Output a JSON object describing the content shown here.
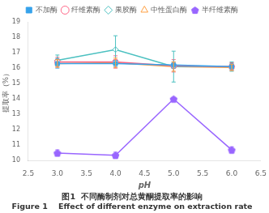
{
  "chart_data": {
    "type": "line",
    "title": "图1  不同酶制剂对总黄酮提取率的影响",
    "subtitle": "Figure 1    Effect of different enzyme on extraction rate",
    "xlabel": "pH",
    "ylabel": "提取率（%）",
    "x": [
      3.0,
      4.0,
      5.0,
      6.0
    ],
    "xlim": [
      2.5,
      6.5
    ],
    "xticks": [
      2.5,
      {
        "value": 3.0,
        "label": "3.0"
      },
      3.5,
      {
        "value": 4.0,
        "label": "4.0"
      },
      4.5,
      {
        "value": 5.0,
        "label": "5.0"
      },
      5.5,
      {
        "value": 6.0,
        "label": "6.0"
      },
      6.5
    ],
    "ylim": [
      10.0,
      19.0
    ],
    "yticks": [
      10,
      11,
      12,
      13,
      14,
      15,
      16,
      17,
      18,
      19
    ],
    "grid": false,
    "legend": "top",
    "series": [
      {
        "name": "不加酶",
        "marker": "filled-square",
        "values": [
          16.3,
          16.3,
          16.2,
          16.1
        ],
        "yerr": [
          0.3,
          0.2,
          0.2,
          0.2
        ]
      },
      {
        "name": "纤维素酶",
        "marker": "open-circle",
        "values": [
          16.4,
          16.4,
          16.15,
          16.1
        ],
        "yerr": [
          0.3,
          0.4,
          0.4,
          0.25
        ]
      },
      {
        "name": "果胶酶",
        "marker": "open-diamond",
        "values": [
          16.5,
          17.2,
          16.1,
          16.1
        ],
        "yerr": [
          0.35,
          0.9,
          1.0,
          0.3
        ]
      },
      {
        "name": "中性蛋白酶",
        "marker": "open-triangle",
        "values": [
          16.3,
          16.35,
          16.1,
          16.05
        ],
        "yerr": [
          0.25,
          0.3,
          0.3,
          0.2
        ]
      },
      {
        "name": "半纤维素酶",
        "marker": "filled-pentagon",
        "values": [
          10.5,
          10.35,
          14.0,
          10.7
        ],
        "yerr": [
          0.2,
          0.2,
          0.0,
          0.2
        ]
      }
    ]
  }
}
